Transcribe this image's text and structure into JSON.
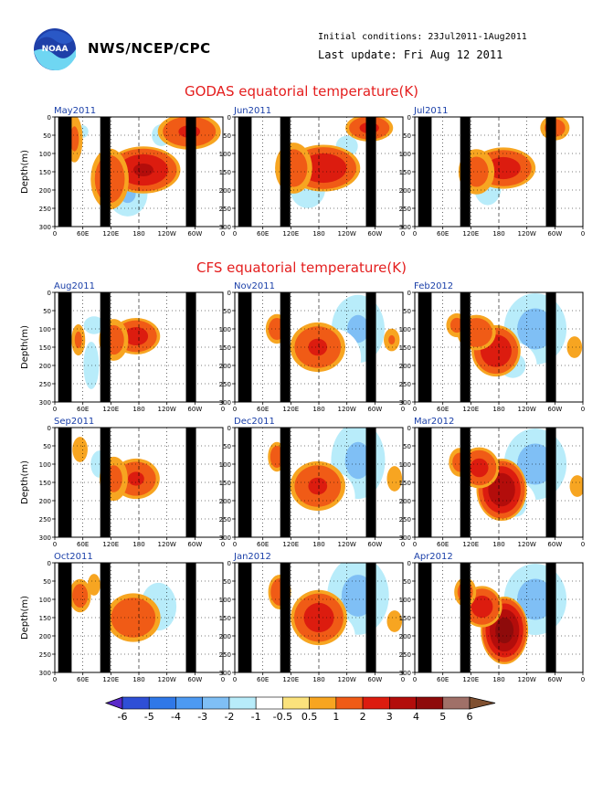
{
  "header": {
    "org": "NWS/NCEP/CPC",
    "initial_conditions": "Initial conditions: 23Jul2011-1Aug2011",
    "last_update": "Last update: Fri Aug 12 2011",
    "logo_text": "NOAA"
  },
  "sections": {
    "godas_title": "GODAS equatorial temperature(K)",
    "cfs_title": "CFS equatorial temperature(K)"
  },
  "chart_data": {
    "type": "heatmap",
    "x_ticks": [
      "0",
      "60E",
      "120E",
      "180",
      "120W",
      "60W",
      "0"
    ],
    "y_ticks": [
      0,
      50,
      100,
      150,
      200,
      250,
      300
    ],
    "ylabel": "Depth(m)",
    "ylim": [
      0,
      300
    ],
    "ylim_orientation": "downward",
    "colorbar": {
      "levels": [
        "-6",
        "-5",
        "-4",
        "-3",
        "-2",
        "-1",
        "-0.5",
        "0.5",
        "1",
        "2",
        "3",
        "4",
        "5",
        "6"
      ],
      "colors": [
        "#5a28c8",
        "#2e4fd6",
        "#2f78e8",
        "#4d9af2",
        "#7fbff5",
        "#b8ecfa",
        "#ffffff",
        "#fbe27c",
        "#f7a521",
        "#f05b16",
        "#dc1c0f",
        "#b30d0b",
        "#8e0b0b",
        "#a07068",
        "#805030"
      ]
    },
    "panels": [
      {
        "label": "May2011",
        "group": "GODAS",
        "maxWarm": 3.5,
        "warm": [
          [
            158,
            145,
            45,
            50,
            3.2
          ],
          [
            98,
            170,
            25,
            70,
            1.8
          ],
          [
            240,
            40,
            40,
            40,
            2.2
          ],
          [
            35,
            60,
            12,
            60,
            1.2
          ]
        ],
        "cold": [
          [
            130,
            210,
            30,
            60,
            -2.2
          ],
          [
            190,
            50,
            20,
            40,
            -1.4
          ],
          [
            50,
            40,
            15,
            30,
            -1.2
          ],
          [
            25,
            270,
            12,
            50,
            -1.0
          ]
        ]
      },
      {
        "label": "Jun2011",
        "group": "GODAS",
        "maxWarm": 3.5,
        "warm": [
          [
            158,
            140,
            45,
            50,
            3.0
          ],
          [
            240,
            30,
            30,
            30,
            2.3
          ],
          [
            105,
            140,
            25,
            60,
            1.6
          ]
        ],
        "cold": [
          [
            130,
            195,
            28,
            55,
            -2.0
          ],
          [
            200,
            80,
            30,
            50,
            -1.2
          ],
          [
            35,
            230,
            12,
            50,
            -1.0
          ]
        ]
      },
      {
        "label": "Jul2011",
        "group": "GODAS",
        "maxWarm": 3.0,
        "warm": [
          [
            158,
            140,
            40,
            45,
            2.6
          ],
          [
            110,
            150,
            25,
            55,
            1.4
          ],
          [
            250,
            30,
            20,
            30,
            1.5
          ]
        ],
        "cold": [
          [
            130,
            190,
            25,
            60,
            -1.6
          ],
          [
            195,
            100,
            25,
            50,
            -1.0
          ],
          [
            45,
            110,
            15,
            40,
            -1.0
          ]
        ]
      },
      {
        "label": "Aug2011",
        "group": "CFS",
        "maxWarm": 3.0,
        "warm": [
          [
            145,
            120,
            30,
            40,
            2.5
          ],
          [
            105,
            130,
            20,
            50,
            1.5
          ],
          [
            42,
            130,
            10,
            40,
            1.2
          ]
        ],
        "cold": [
          [
            65,
            200,
            15,
            80,
            -1.5
          ],
          [
            70,
            90,
            20,
            30,
            -1.5
          ],
          [
            200,
            90,
            20,
            40,
            -1.0
          ]
        ]
      },
      {
        "label": "Nov2011",
        "group": "CFS",
        "maxWarm": 2.5,
        "warm": [
          [
            148,
            150,
            35,
            55,
            2.2
          ],
          [
            75,
            100,
            15,
            35,
            1.6
          ],
          [
            280,
            130,
            12,
            30,
            1.1
          ]
        ],
        "cold": [
          [
            220,
            100,
            40,
            90,
            -2.2
          ],
          [
            180,
            180,
            40,
            80,
            -1.0
          ],
          [
            40,
            250,
            10,
            40,
            -0.8
          ]
        ]
      },
      {
        "label": "Feb2012",
        "group": "CFS",
        "maxWarm": 3.5,
        "warm": [
          [
            145,
            160,
            30,
            55,
            3.0
          ],
          [
            110,
            110,
            25,
            40,
            2.0
          ],
          [
            75,
            90,
            15,
            30,
            1.3
          ],
          [
            285,
            150,
            12,
            30,
            1.0
          ]
        ],
        "cold": [
          [
            215,
            100,
            45,
            90,
            -2.5
          ],
          [
            175,
            200,
            35,
            60,
            -1.2
          ],
          [
            40,
            270,
            12,
            40,
            -0.8
          ]
        ]
      },
      {
        "label": "Sep2011",
        "group": "CFS",
        "maxWarm": 2.5,
        "warm": [
          [
            145,
            140,
            30,
            45,
            2.2
          ],
          [
            105,
            140,
            20,
            55,
            1.3
          ],
          [
            45,
            60,
            12,
            35,
            1.0
          ]
        ],
        "cold": [
          [
            80,
            100,
            15,
            40,
            -1.8
          ],
          [
            195,
            110,
            25,
            40,
            -1.0
          ],
          [
            40,
            240,
            12,
            60,
            -0.8
          ]
        ]
      },
      {
        "label": "Dec2011",
        "group": "CFS",
        "maxWarm": 2.5,
        "warm": [
          [
            148,
            160,
            35,
            55,
            2.2
          ],
          [
            75,
            80,
            12,
            35,
            1.6
          ],
          [
            285,
            140,
            12,
            35,
            1.0
          ]
        ],
        "cold": [
          [
            220,
            90,
            40,
            100,
            -2.3
          ],
          [
            175,
            190,
            35,
            70,
            -1.0
          ],
          [
            40,
            260,
            10,
            40,
            -0.8
          ]
        ]
      },
      {
        "label": "Mar2012",
        "group": "CFS",
        "maxWarm": 4.5,
        "warm": [
          [
            155,
            170,
            30,
            65,
            4.0
          ],
          [
            115,
            110,
            25,
            45,
            2.4
          ],
          [
            80,
            95,
            15,
            35,
            1.4
          ],
          [
            290,
            160,
            12,
            30,
            1.0
          ]
        ],
        "cold": [
          [
            215,
            100,
            45,
            90,
            -2.5
          ],
          [
            180,
            210,
            30,
            60,
            -1.2
          ]
        ]
      },
      {
        "label": "Oct2011",
        "group": "CFS",
        "maxWarm": 2.5,
        "warm": [
          [
            140,
            150,
            35,
            55,
            2.0
          ],
          [
            45,
            90,
            15,
            40,
            1.5
          ],
          [
            70,
            60,
            10,
            30,
            1.0
          ]
        ],
        "cold": [
          [
            185,
            120,
            30,
            70,
            -1.8
          ],
          [
            120,
            60,
            20,
            40,
            -1.0
          ],
          [
            40,
            260,
            12,
            50,
            -0.8
          ]
        ]
      },
      {
        "label": "Jan2012",
        "group": "CFS",
        "maxWarm": 3.0,
        "warm": [
          [
            150,
            150,
            35,
            60,
            2.6
          ],
          [
            80,
            80,
            15,
            40,
            1.8
          ],
          [
            285,
            160,
            12,
            30,
            1.0
          ]
        ],
        "cold": [
          [
            220,
            90,
            45,
            100,
            -2.4
          ],
          [
            175,
            200,
            35,
            60,
            -1.0
          ]
        ]
      },
      {
        "label": "Apr2012",
        "group": "CFS",
        "maxWarm": 5.0,
        "warm": [
          [
            160,
            185,
            28,
            70,
            4.6
          ],
          [
            120,
            120,
            25,
            45,
            2.6
          ],
          [
            90,
            80,
            15,
            35,
            1.5
          ]
        ],
        "cold": [
          [
            215,
            100,
            45,
            90,
            -2.5
          ],
          [
            190,
            240,
            30,
            50,
            -1.0
          ]
        ]
      }
    ]
  }
}
